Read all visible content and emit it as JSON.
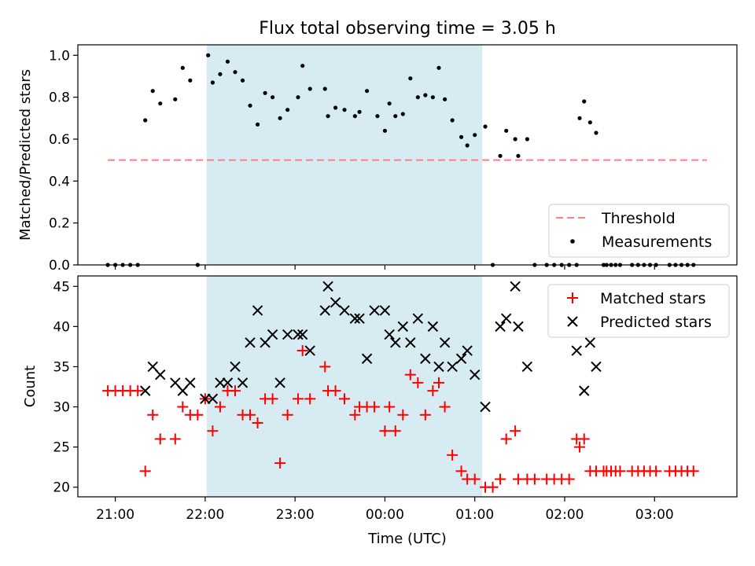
{
  "chart_data": {
    "title": "Flux total observing time = 3.05 h",
    "xlabel": "Time (UTC)",
    "x_unit": "hours (day 1 = 00:00 start)",
    "xlim": [
      "20:35",
      "03:55"
    ],
    "x_ticks": [
      "21:00",
      "22:00",
      "23:00",
      "00:00",
      "01:00",
      "02:00",
      "03:00"
    ],
    "highlight_span": {
      "start": "22:01",
      "end": "01:05",
      "color": "#add8e6"
    },
    "panels": [
      {
        "type": "scatter",
        "ylabel": "Matched/Predicted stars",
        "ylim": [
          0,
          1.05
        ],
        "y_ticks": [
          "0.0",
          "0.2",
          "0.4",
          "0.6",
          "0.8",
          "1.0"
        ],
        "legend_position": "bottom-right",
        "threshold": {
          "name": "Threshold",
          "value": 0.5,
          "x_start": "20:55",
          "x_end": "03:35",
          "color": "#ff7f7f"
        },
        "series": [
          {
            "name": "Measurements",
            "color": "#000000",
            "points": [
              [
                "20:55",
                0
              ],
              [
                "21:00",
                0
              ],
              [
                "21:05",
                0
              ],
              [
                "21:10",
                0
              ],
              [
                "21:15",
                0
              ],
              [
                "21:20",
                0.69
              ],
              [
                "21:25",
                0.83
              ],
              [
                "21:30",
                0.77
              ],
              [
                "21:40",
                0.79
              ],
              [
                "21:45",
                0.94
              ],
              [
                "21:50",
                0.88
              ],
              [
                "21:55",
                0
              ],
              [
                "22:02",
                1.0
              ],
              [
                "22:05",
                0.87
              ],
              [
                "22:10",
                0.91
              ],
              [
                "22:15",
                0.97
              ],
              [
                "22:20",
                0.92
              ],
              [
                "22:25",
                0.88
              ],
              [
                "22:30",
                0.76
              ],
              [
                "22:35",
                0.67
              ],
              [
                "22:40",
                0.82
              ],
              [
                "22:45",
                0.8
              ],
              [
                "22:50",
                0.7
              ],
              [
                "22:55",
                0.74
              ],
              [
                "23:02",
                0.8
              ],
              [
                "23:05",
                0.95
              ],
              [
                "23:10",
                0.84
              ],
              [
                "23:20",
                0.84
              ],
              [
                "23:22",
                0.71
              ],
              [
                "23:27",
                0.75
              ],
              [
                "23:33",
                0.74
              ],
              [
                "23:40",
                0.71
              ],
              [
                "23:43",
                0.73
              ],
              [
                "23:48",
                0.83
              ],
              [
                "23:55",
                0.71
              ],
              [
                "00:00",
                0.64
              ],
              [
                "00:03",
                0.77
              ],
              [
                "00:07",
                0.71
              ],
              [
                "00:12",
                0.72
              ],
              [
                "00:17",
                0.89
              ],
              [
                "00:22",
                0.8
              ],
              [
                "00:27",
                0.81
              ],
              [
                "00:32",
                0.8
              ],
              [
                "00:36",
                0.94
              ],
              [
                "00:40",
                0.79
              ],
              [
                "00:45",
                0.69
              ],
              [
                "00:51",
                0.61
              ],
              [
                "00:55",
                0.57
              ],
              [
                "01:00",
                0.62
              ],
              [
                "01:07",
                0.66
              ],
              [
                "01:12",
                0
              ],
              [
                "01:17",
                0.52
              ],
              [
                "01:21",
                0.64
              ],
              [
                "01:27",
                0.6
              ],
              [
                "01:29",
                0.52
              ],
              [
                "01:35",
                0.6
              ],
              [
                "01:40",
                0
              ],
              [
                "01:48",
                0
              ],
              [
                "01:53",
                0
              ],
              [
                "01:58",
                0
              ],
              [
                "02:03",
                0
              ],
              [
                "02:08",
                0
              ],
              [
                "02:10",
                0.7
              ],
              [
                "02:13",
                0.78
              ],
              [
                "02:17",
                0.68
              ],
              [
                "02:21",
                0.63
              ],
              [
                "02:26",
                0
              ],
              [
                "02:28",
                0
              ],
              [
                "02:31",
                0
              ],
              [
                "02:34",
                0
              ],
              [
                "02:37",
                0
              ],
              [
                "02:45",
                0
              ],
              [
                "02:49",
                0
              ],
              [
                "02:53",
                0
              ],
              [
                "02:57",
                0
              ],
              [
                "03:01",
                0
              ],
              [
                "03:10",
                0
              ],
              [
                "03:14",
                0
              ],
              [
                "03:18",
                0
              ],
              [
                "03:22",
                0
              ],
              [
                "03:26",
                0
              ]
            ]
          }
        ]
      },
      {
        "type": "scatter",
        "ylabel": "Count",
        "ylim": [
          18.8,
          46.3
        ],
        "y_ticks": [
          "20",
          "25",
          "30",
          "35",
          "40",
          "45"
        ],
        "legend_position": "top-right",
        "series": [
          {
            "name": "Matched stars",
            "color": "#ff0000",
            "marker": "+",
            "points": [
              [
                "20:55",
                32
              ],
              [
                "21:00",
                32
              ],
              [
                "21:05",
                32
              ],
              [
                "21:10",
                32
              ],
              [
                "21:15",
                32
              ],
              [
                "21:20",
                22
              ],
              [
                "21:25",
                29
              ],
              [
                "21:30",
                26
              ],
              [
                "21:40",
                26
              ],
              [
                "21:45",
                30
              ],
              [
                "21:50",
                29
              ],
              [
                "21:55",
                29
              ],
              [
                "22:00",
                31
              ],
              [
                "22:05",
                27
              ],
              [
                "22:10",
                30
              ],
              [
                "22:15",
                32
              ],
              [
                "22:20",
                32
              ],
              [
                "22:25",
                29
              ],
              [
                "22:30",
                29
              ],
              [
                "22:35",
                28
              ],
              [
                "22:40",
                31
              ],
              [
                "22:45",
                31
              ],
              [
                "22:50",
                23
              ],
              [
                "22:55",
                29
              ],
              [
                "23:02",
                31
              ],
              [
                "23:05",
                37
              ],
              [
                "23:10",
                31
              ],
              [
                "23:20",
                35
              ],
              [
                "23:22",
                32
              ],
              [
                "23:27",
                32
              ],
              [
                "23:33",
                31
              ],
              [
                "23:40",
                29
              ],
              [
                "23:43",
                30
              ],
              [
                "23:48",
                30
              ],
              [
                "23:53",
                30
              ],
              [
                "00:00",
                27
              ],
              [
                "00:03",
                30
              ],
              [
                "00:07",
                27
              ],
              [
                "00:12",
                29
              ],
              [
                "00:17",
                34
              ],
              [
                "00:22",
                33
              ],
              [
                "00:27",
                29
              ],
              [
                "00:32",
                32
              ],
              [
                "00:36",
                33
              ],
              [
                "00:40",
                30
              ],
              [
                "00:45",
                24
              ],
              [
                "00:51",
                22
              ],
              [
                "00:55",
                21
              ],
              [
                "01:00",
                21
              ],
              [
                "01:07",
                20
              ],
              [
                "01:12",
                20
              ],
              [
                "01:17",
                21
              ],
              [
                "01:21",
                26
              ],
              [
                "01:27",
                27
              ],
              [
                "01:29",
                21
              ],
              [
                "01:35",
                21
              ],
              [
                "01:40",
                21
              ],
              [
                "01:48",
                21
              ],
              [
                "01:53",
                21
              ],
              [
                "01:58",
                21
              ],
              [
                "02:03",
                21
              ],
              [
                "02:08",
                26
              ],
              [
                "02:10",
                25
              ],
              [
                "02:13",
                26
              ],
              [
                "02:17",
                22
              ],
              [
                "02:21",
                22
              ],
              [
                "02:26",
                22
              ],
              [
                "02:28",
                22
              ],
              [
                "02:31",
                22
              ],
              [
                "02:34",
                22
              ],
              [
                "02:37",
                22
              ],
              [
                "02:45",
                22
              ],
              [
                "02:49",
                22
              ],
              [
                "02:53",
                22
              ],
              [
                "02:57",
                22
              ],
              [
                "03:01",
                22
              ],
              [
                "03:10",
                22
              ],
              [
                "03:14",
                22
              ],
              [
                "03:18",
                22
              ],
              [
                "03:22",
                22
              ],
              [
                "03:26",
                22
              ]
            ]
          },
          {
            "name": "Predicted stars",
            "color": "#000000",
            "marker": "x",
            "points": [
              [
                "21:20",
                32
              ],
              [
                "21:25",
                35
              ],
              [
                "21:30",
                34
              ],
              [
                "21:40",
                33
              ],
              [
                "21:45",
                32
              ],
              [
                "21:50",
                33
              ],
              [
                "22:00",
                31
              ],
              [
                "22:05",
                31
              ],
              [
                "22:10",
                33
              ],
              [
                "22:15",
                33
              ],
              [
                "22:20",
                35
              ],
              [
                "22:25",
                33
              ],
              [
                "22:30",
                38
              ],
              [
                "22:35",
                42
              ],
              [
                "22:40",
                38
              ],
              [
                "22:45",
                39
              ],
              [
                "22:50",
                33
              ],
              [
                "22:55",
                39
              ],
              [
                "23:02",
                39
              ],
              [
                "23:05",
                39
              ],
              [
                "23:10",
                37
              ],
              [
                "23:20",
                42
              ],
              [
                "23:22",
                45
              ],
              [
                "23:27",
                43
              ],
              [
                "23:33",
                42
              ],
              [
                "23:40",
                41
              ],
              [
                "23:43",
                41
              ],
              [
                "23:48",
                36
              ],
              [
                "23:53",
                42
              ],
              [
                "00:00",
                42
              ],
              [
                "00:03",
                39
              ],
              [
                "00:07",
                38
              ],
              [
                "00:12",
                40
              ],
              [
                "00:17",
                38
              ],
              [
                "00:22",
                41
              ],
              [
                "00:27",
                36
              ],
              [
                "00:32",
                40
              ],
              [
                "00:36",
                35
              ],
              [
                "00:40",
                38
              ],
              [
                "00:45",
                35
              ],
              [
                "00:51",
                36
              ],
              [
                "00:55",
                37
              ],
              [
                "01:00",
                34
              ],
              [
                "01:07",
                30
              ],
              [
                "01:17",
                40
              ],
              [
                "01:21",
                41
              ],
              [
                "01:27",
                45
              ],
              [
                "01:29",
                40
              ],
              [
                "01:35",
                35
              ],
              [
                "02:08",
                37
              ],
              [
                "02:13",
                32
              ],
              [
                "02:17",
                38
              ],
              [
                "02:21",
                35
              ]
            ]
          }
        ]
      }
    ]
  }
}
